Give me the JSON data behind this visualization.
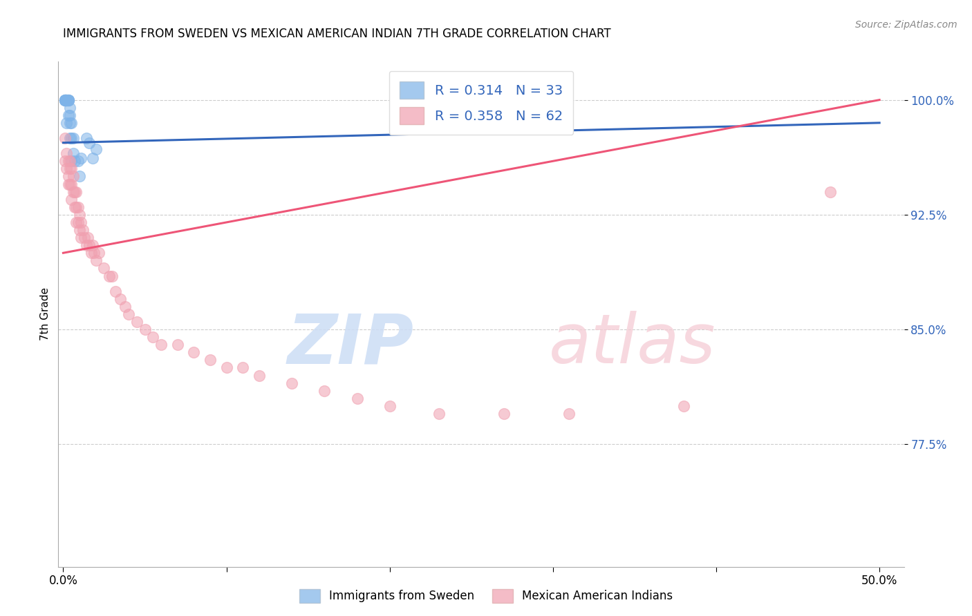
{
  "title": "IMMIGRANTS FROM SWEDEN VS MEXICAN AMERICAN INDIAN 7TH GRADE CORRELATION CHART",
  "source": "Source: ZipAtlas.com",
  "ylabel": "7th Grade",
  "legend_label1": "Immigrants from Sweden",
  "legend_label2": "Mexican American Indians",
  "R1": "0.314",
  "N1": "33",
  "R2": "0.358",
  "N2": "62",
  "color_blue": "#7EB3E8",
  "color_pink": "#F0A0B0",
  "trend_blue": "#3366BB",
  "trend_pink": "#EE5577",
  "background": "#FFFFFF",
  "grid_color": "#CCCCCC",
  "y_min": 0.695,
  "y_max": 1.025,
  "x_min": -0.003,
  "x_max": 0.515,
  "blue_trend_x0": 0.0,
  "blue_trend_x1": 0.5,
  "blue_trend_y0": 0.972,
  "blue_trend_y1": 0.985,
  "pink_trend_x0": 0.0,
  "pink_trend_x1": 0.5,
  "pink_trend_y0": 0.9,
  "pink_trend_y1": 1.0,
  "blue_points_x": [
    0.001,
    0.001,
    0.001,
    0.001,
    0.001,
    0.001,
    0.002,
    0.002,
    0.002,
    0.002,
    0.002,
    0.003,
    0.003,
    0.003,
    0.003,
    0.003,
    0.004,
    0.004,
    0.004,
    0.004,
    0.005,
    0.005,
    0.005,
    0.006,
    0.006,
    0.007,
    0.009,
    0.01,
    0.011,
    0.014,
    0.016,
    0.018,
    0.02
  ],
  "blue_points_y": [
    1.0,
    1.0,
    1.0,
    1.0,
    1.0,
    1.0,
    1.0,
    1.0,
    1.0,
    1.0,
    0.985,
    1.0,
    1.0,
    1.0,
    1.0,
    0.99,
    0.995,
    0.99,
    0.985,
    0.975,
    0.985,
    0.975,
    0.96,
    0.975,
    0.965,
    0.96,
    0.96,
    0.95,
    0.962,
    0.975,
    0.972,
    0.962,
    0.968
  ],
  "pink_points_x": [
    0.001,
    0.001,
    0.002,
    0.002,
    0.003,
    0.003,
    0.003,
    0.004,
    0.004,
    0.004,
    0.005,
    0.005,
    0.005,
    0.006,
    0.006,
    0.007,
    0.007,
    0.008,
    0.008,
    0.008,
    0.009,
    0.009,
    0.01,
    0.01,
    0.011,
    0.011,
    0.012,
    0.013,
    0.014,
    0.015,
    0.016,
    0.017,
    0.018,
    0.019,
    0.02,
    0.022,
    0.025,
    0.028,
    0.03,
    0.032,
    0.035,
    0.038,
    0.04,
    0.045,
    0.05,
    0.055,
    0.06,
    0.07,
    0.08,
    0.09,
    0.1,
    0.11,
    0.12,
    0.14,
    0.16,
    0.18,
    0.2,
    0.23,
    0.27,
    0.31,
    0.38,
    0.47
  ],
  "pink_points_y": [
    0.975,
    0.96,
    0.965,
    0.955,
    0.96,
    0.95,
    0.945,
    0.96,
    0.955,
    0.945,
    0.955,
    0.945,
    0.935,
    0.95,
    0.94,
    0.94,
    0.93,
    0.94,
    0.93,
    0.92,
    0.93,
    0.92,
    0.925,
    0.915,
    0.92,
    0.91,
    0.915,
    0.91,
    0.905,
    0.91,
    0.905,
    0.9,
    0.905,
    0.9,
    0.895,
    0.9,
    0.89,
    0.885,
    0.885,
    0.875,
    0.87,
    0.865,
    0.86,
    0.855,
    0.85,
    0.845,
    0.84,
    0.84,
    0.835,
    0.83,
    0.825,
    0.825,
    0.82,
    0.815,
    0.81,
    0.805,
    0.8,
    0.795,
    0.795,
    0.795,
    0.8,
    0.94
  ]
}
